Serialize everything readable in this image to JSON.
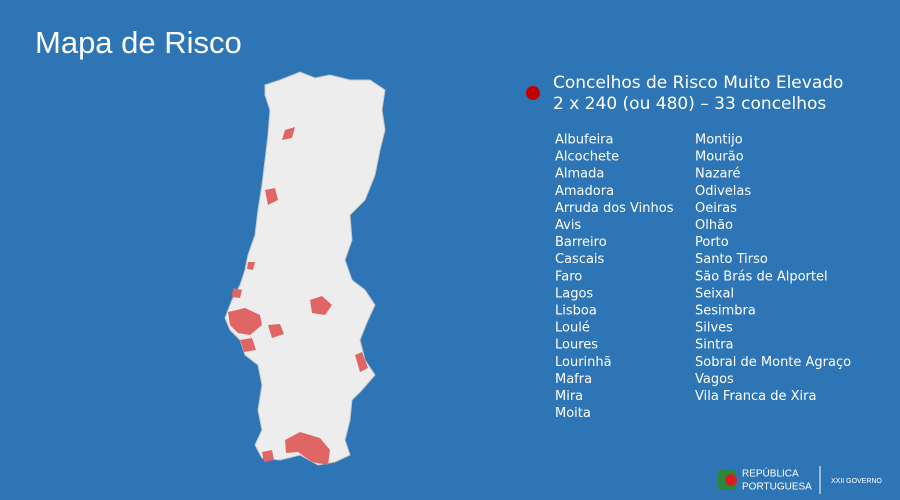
{
  "title": "Mapa de Risco",
  "legend": {
    "line1": "Concelhos de Risco Muito Elevado",
    "line2": "2 x 240 (ou 480) – 33 concelhos"
  },
  "municipalities": {
    "column1": [
      "Albufeira",
      "Alcochete",
      "Almada",
      "Amadora",
      "Arruda dos Vinhos",
      "Avis",
      "Barreiro",
      "Cascais",
      "Faro",
      "Lagos",
      "Lisboa",
      "Loulé",
      "Loures",
      "Lourinhã",
      "Mafra",
      "Mira",
      "Moita"
    ],
    "column2": [
      "Montijo",
      "Mourão",
      "Nazaré",
      "Odivelas",
      "Oeiras",
      "Olhão",
      "Porto",
      "Santo Tirso",
      "São Brás de Alportel",
      "Seixal",
      "Sesimbra",
      "Silves",
      "Sintra",
      "Sobral de Monte Agraço",
      "Vagos",
      "Vila Franca de Xira"
    ]
  },
  "footer": {
    "line1": "REPÚBLICA",
    "line2": "PORTUGUESA",
    "government": "XXII GOVERNO"
  }
}
